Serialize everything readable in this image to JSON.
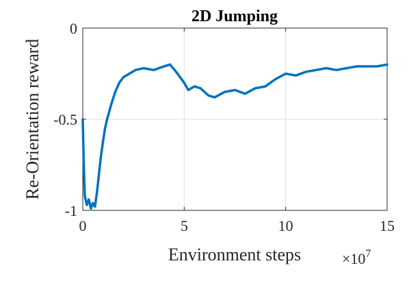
{
  "chart_data": {
    "type": "line",
    "title": "2D Jumping",
    "xlabel": "Environment steps",
    "ylabel": "Re-Orientation reward",
    "x_multiplier_label": "×10",
    "x_multiplier_exponent": "7",
    "xlim": [
      0,
      15
    ],
    "ylim": [
      -1,
      0
    ],
    "xticks": [
      0,
      5,
      10,
      15
    ],
    "xtick_labels": [
      "0",
      "5",
      "10",
      "15"
    ],
    "yticks": [
      -1,
      -0.5,
      0
    ],
    "ytick_labels": [
      "-1",
      "-0.5",
      "0"
    ],
    "grid": true,
    "line_color": "#0072BD",
    "series": [
      {
        "x": [
          0,
          0.05,
          0.1,
          0.2,
          0.3,
          0.4,
          0.5,
          0.6,
          0.7,
          0.8,
          0.9,
          1.0,
          1.1,
          1.2,
          1.4,
          1.6,
          1.8,
          2.0,
          2.3,
          2.6,
          3.0,
          3.5,
          4.0,
          4.3,
          4.6,
          5.0,
          5.2,
          5.5,
          5.8,
          6.2,
          6.5,
          7.0,
          7.5,
          8.0,
          8.5,
          9.0,
          9.5,
          10.0,
          10.5,
          11.0,
          11.5,
          12.0,
          12.5,
          13.0,
          13.5,
          14.0,
          14.5,
          15.0
        ],
        "y": [
          -0.5,
          -0.75,
          -0.92,
          -0.97,
          -0.94,
          -0.99,
          -0.96,
          -0.98,
          -0.9,
          -0.8,
          -0.7,
          -0.62,
          -0.55,
          -0.5,
          -0.42,
          -0.35,
          -0.3,
          -0.27,
          -0.25,
          -0.23,
          -0.22,
          -0.23,
          -0.21,
          -0.2,
          -0.24,
          -0.3,
          -0.34,
          -0.32,
          -0.33,
          -0.37,
          -0.38,
          -0.35,
          -0.34,
          -0.36,
          -0.33,
          -0.32,
          -0.28,
          -0.25,
          -0.26,
          -0.24,
          -0.23,
          -0.22,
          -0.23,
          -0.22,
          -0.21,
          -0.21,
          -0.21,
          -0.2
        ]
      }
    ]
  }
}
